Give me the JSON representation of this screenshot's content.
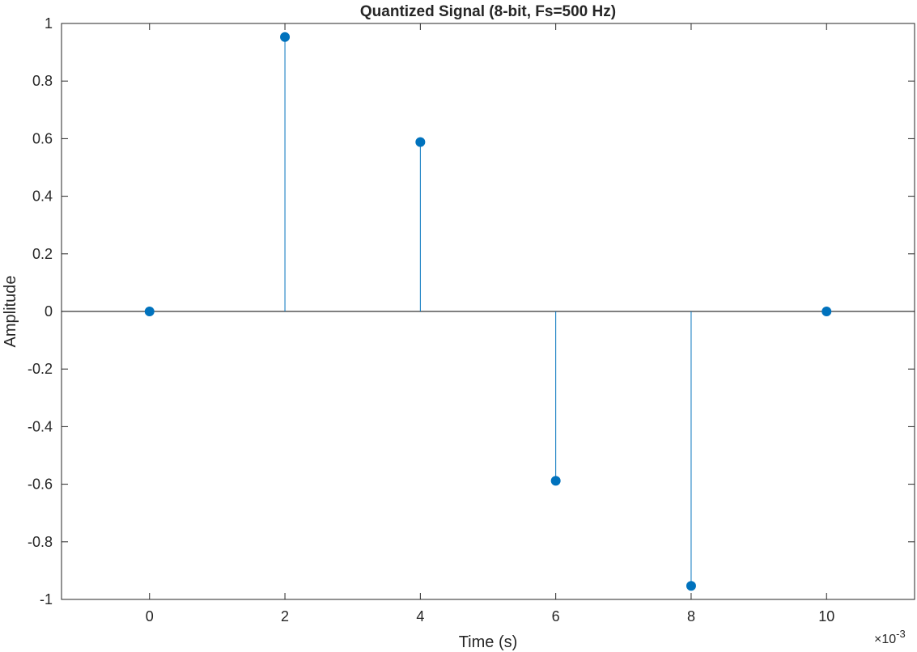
{
  "chart_data": {
    "type": "stem",
    "title": "Quantized Signal (8-bit, Fs=500 Hz)",
    "xlabel": "Time (s)",
    "ylabel": "Amplitude",
    "x_exponent_label": "×10",
    "x_exponent_power": "-3",
    "xlim": [
      -1.3,
      11.3
    ],
    "ylim": [
      -1,
      1
    ],
    "x_ticks": [
      0,
      2,
      4,
      6,
      8,
      10
    ],
    "x_tick_labels": [
      "0",
      "2",
      "4",
      "6",
      "8",
      "10"
    ],
    "y_ticks": [
      1,
      0.8,
      0.6,
      0.4,
      0.2,
      0,
      -0.2,
      -0.4,
      -0.6,
      -0.8,
      -1
    ],
    "y_tick_labels": [
      "1",
      "0.8",
      "0.6",
      "0.4",
      "0.2",
      "0",
      "-0.2",
      "-0.4",
      "-0.6",
      "-0.8",
      "-1"
    ],
    "x": [
      0,
      2,
      4,
      6,
      8,
      10
    ],
    "values": [
      0,
      0.953,
      0.588,
      -0.588,
      -0.953,
      0
    ],
    "grid": false,
    "baseline": 0,
    "series_color": "#0072BD",
    "axis_color": "#262626"
  }
}
